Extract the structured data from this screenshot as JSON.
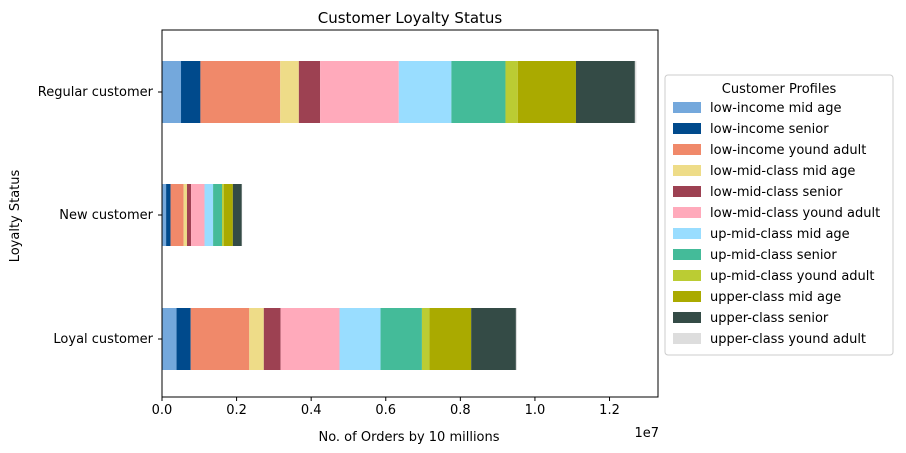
{
  "chart_data": {
    "type": "bar",
    "orientation": "horizontal",
    "stacked": true,
    "title": "Customer Loyalty Status",
    "xlabel": "No. of Orders by 10 millions",
    "ylabel": "Loyalty Status",
    "x_offset_label": "1e7",
    "xlim": [
      0,
      13300000
    ],
    "x_ticks": [
      0,
      2000000,
      4000000,
      6000000,
      8000000,
      10000000,
      12000000
    ],
    "x_tick_labels": [
      "0.0",
      "0.2",
      "0.4",
      "0.6",
      "0.8",
      "1.0",
      "1.2"
    ],
    "grid": false,
    "legend_position": "right, outside plot",
    "legend_title": "Customer Profiles",
    "categories": [
      "Loyal customer",
      "New customer",
      "Regular customer"
    ],
    "series": [
      {
        "name": "low-income mid age",
        "color": "#74a8dc",
        "values": [
          390000,
          110000,
          510000
        ]
      },
      {
        "name": "low-income senior",
        "color": "#004a8c",
        "values": [
          380000,
          120000,
          520000
        ]
      },
      {
        "name": "low-income yound adult",
        "color": "#f0896a",
        "values": [
          1570000,
          350000,
          2140000
        ]
      },
      {
        "name": "low-mid-class mid age",
        "color": "#eedc88",
        "values": [
          390000,
          90000,
          500000
        ]
      },
      {
        "name": "low-mid-class senior",
        "color": "#9d4152",
        "values": [
          450000,
          110000,
          570000
        ]
      },
      {
        "name": "low-mid-class yound adult",
        "color": "#ffaabb",
        "values": [
          1580000,
          360000,
          2110000
        ]
      },
      {
        "name": "up-mid-class mid age",
        "color": "#99ddff",
        "values": [
          1100000,
          230000,
          1410000
        ]
      },
      {
        "name": "up-mid-class senior",
        "color": "#44bb99",
        "values": [
          1110000,
          240000,
          1450000
        ]
      },
      {
        "name": "up-mid-class yound adult",
        "color": "#bbcc33",
        "values": [
          200000,
          50000,
          330000
        ]
      },
      {
        "name": "upper-class mid age",
        "color": "#aaaa00",
        "values": [
          1120000,
          240000,
          1560000
        ]
      },
      {
        "name": "upper-class senior",
        "color": "#344b46",
        "values": [
          1200000,
          240000,
          1580000
        ]
      },
      {
        "name": "upper-class yound adult",
        "color": "#dddddd",
        "values": [
          30000,
          10000,
          40000
        ]
      }
    ]
  }
}
